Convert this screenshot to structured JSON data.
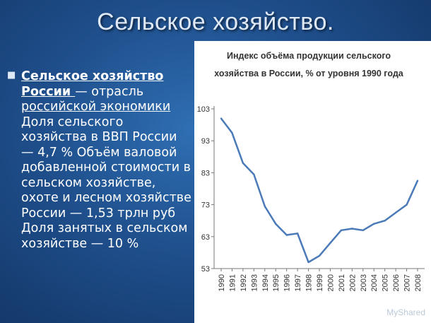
{
  "slide": {
    "title": "Сельское хозяйство.",
    "text": {
      "link1": "Сельское хозяйство",
      "link2": "России ",
      "t1": "— отрасль ",
      "link3": "российской экономики",
      "t2": " Доля сельского хозяйства в ВВП России — 4,7 % Объём валовой добавленной стоимости в сельском хозяйстве, охоте и лесном хозяйстве России — 1,53 трлн руб Доля занятых в сельском хозяйстве — 10 %"
    },
    "watermark": "MyShared"
  },
  "chart_data": {
    "type": "line",
    "title_line1": "Индекс объёма продукции сельского",
    "title_line2": "хозяйства в России, % от уровня 1990 года",
    "x": [
      "1990",
      "1991",
      "1992",
      "1993",
      "1994",
      "1995",
      "1996",
      "1997",
      "1998",
      "1999",
      "2000",
      "2001",
      "2002",
      "2003",
      "2004",
      "2005",
      "2006",
      "2007",
      "2008"
    ],
    "values": [
      100,
      95.5,
      86,
      82.5,
      72.5,
      67,
      63.5,
      64,
      55,
      57,
      61,
      65,
      65.5,
      65,
      67,
      68,
      70.5,
      73,
      80.5
    ],
    "yticks": [
      53,
      63,
      73,
      83,
      93,
      103
    ],
    "ylim": [
      53,
      103
    ],
    "line_color": "#4a7ab8",
    "grid": false
  }
}
